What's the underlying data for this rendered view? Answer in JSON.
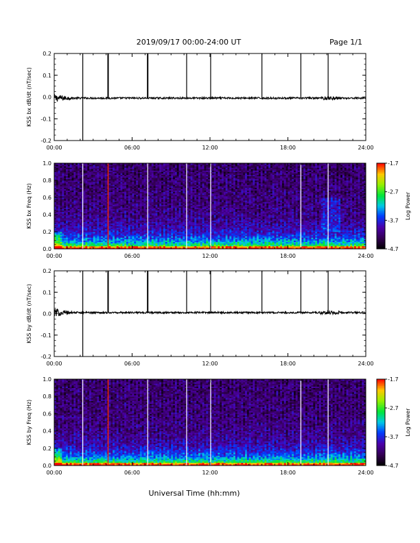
{
  "header": {
    "title": "2019/09/17  00:00-24:00 UT",
    "page": "Page 1/1"
  },
  "chart_data": [
    {
      "type": "line",
      "ylabel": "KSS bx dB/dt (nT/sec)",
      "xlim": [
        0,
        24
      ],
      "ylim": [
        -0.2,
        0.2
      ],
      "xticks": [
        "00:00",
        "06:00",
        "12:00",
        "18:00",
        "24:00"
      ],
      "yticks": [
        "-0.2",
        "-0.1",
        "0.0",
        "0.1",
        "0.2"
      ],
      "baseline": -0.005,
      "spikes": [
        {
          "t": 2.2,
          "to": 0.2
        },
        {
          "t": 2.2,
          "to": -0.2
        },
        {
          "t": 4.15,
          "to": 0.2
        },
        {
          "t": 7.2,
          "to": 0.2
        },
        {
          "t": 10.2,
          "to": 0.2
        },
        {
          "t": 12.05,
          "to": 0.2
        },
        {
          "t": 16.0,
          "to": 0.2
        },
        {
          "t": 19.0,
          "to": 0.2
        },
        {
          "t": 21.1,
          "to": 0.2
        }
      ]
    },
    {
      "type": "heatmap",
      "ylabel": "KSS bx Freq (Hz)",
      "xlim": [
        0,
        24
      ],
      "ylim": [
        0,
        1.0
      ],
      "xticks": [
        "00:00",
        "06:00",
        "12:00",
        "18:00",
        "24:00"
      ],
      "yticks": [
        "0.0",
        "0.2",
        "0.4",
        "0.6",
        "0.8",
        "1.0"
      ],
      "colorbar": {
        "label": "Log Power",
        "min": -4.7,
        "max": -1.7,
        "ticks": [
          "-1.7",
          "-2.7",
          "-3.7",
          "-4.7"
        ]
      },
      "white_lines": [
        2.2,
        7.2,
        10.2,
        12.05,
        19.0,
        21.1
      ],
      "red_lines": [
        4.15
      ]
    },
    {
      "type": "line",
      "ylabel": "KSS by dB/dt (nT/sec)",
      "xlim": [
        0,
        24
      ],
      "ylim": [
        -0.2,
        0.2
      ],
      "xticks": [
        "00:00",
        "06:00",
        "12:00",
        "18:00",
        "24:00"
      ],
      "yticks": [
        "-0.2",
        "-0.1",
        "0.0",
        "0.1",
        "0.2"
      ],
      "baseline": 0.005,
      "spikes": [
        {
          "t": 2.2,
          "to": 0.2
        },
        {
          "t": 2.2,
          "to": -0.2
        },
        {
          "t": 4.15,
          "to": 0.2
        },
        {
          "t": 7.2,
          "to": 0.2
        },
        {
          "t": 10.2,
          "to": 0.2
        },
        {
          "t": 12.05,
          "to": 0.2
        },
        {
          "t": 16.0,
          "to": 0.2
        },
        {
          "t": 19.0,
          "to": 0.2
        },
        {
          "t": 21.1,
          "to": 0.2
        }
      ]
    },
    {
      "type": "heatmap",
      "ylabel": "KSS by Freq (Hz)",
      "xlim": [
        0,
        24
      ],
      "ylim": [
        0,
        1.0
      ],
      "xticks": [
        "00:00",
        "06:00",
        "12:00",
        "18:00",
        "24:00"
      ],
      "yticks": [
        "0.0",
        "0.2",
        "0.4",
        "0.6",
        "0.8",
        "1.0"
      ],
      "colorbar": {
        "label": "Log Power",
        "min": -4.7,
        "max": -1.7,
        "ticks": [
          "-1.7",
          "-2.7",
          "-3.7",
          "-4.7"
        ]
      },
      "white_lines": [
        2.2,
        7.2,
        10.2,
        12.05,
        19.0,
        21.1
      ],
      "red_lines": [
        4.15
      ]
    }
  ],
  "footer": {
    "xlabel": "Universal Time (hh:mm)"
  }
}
